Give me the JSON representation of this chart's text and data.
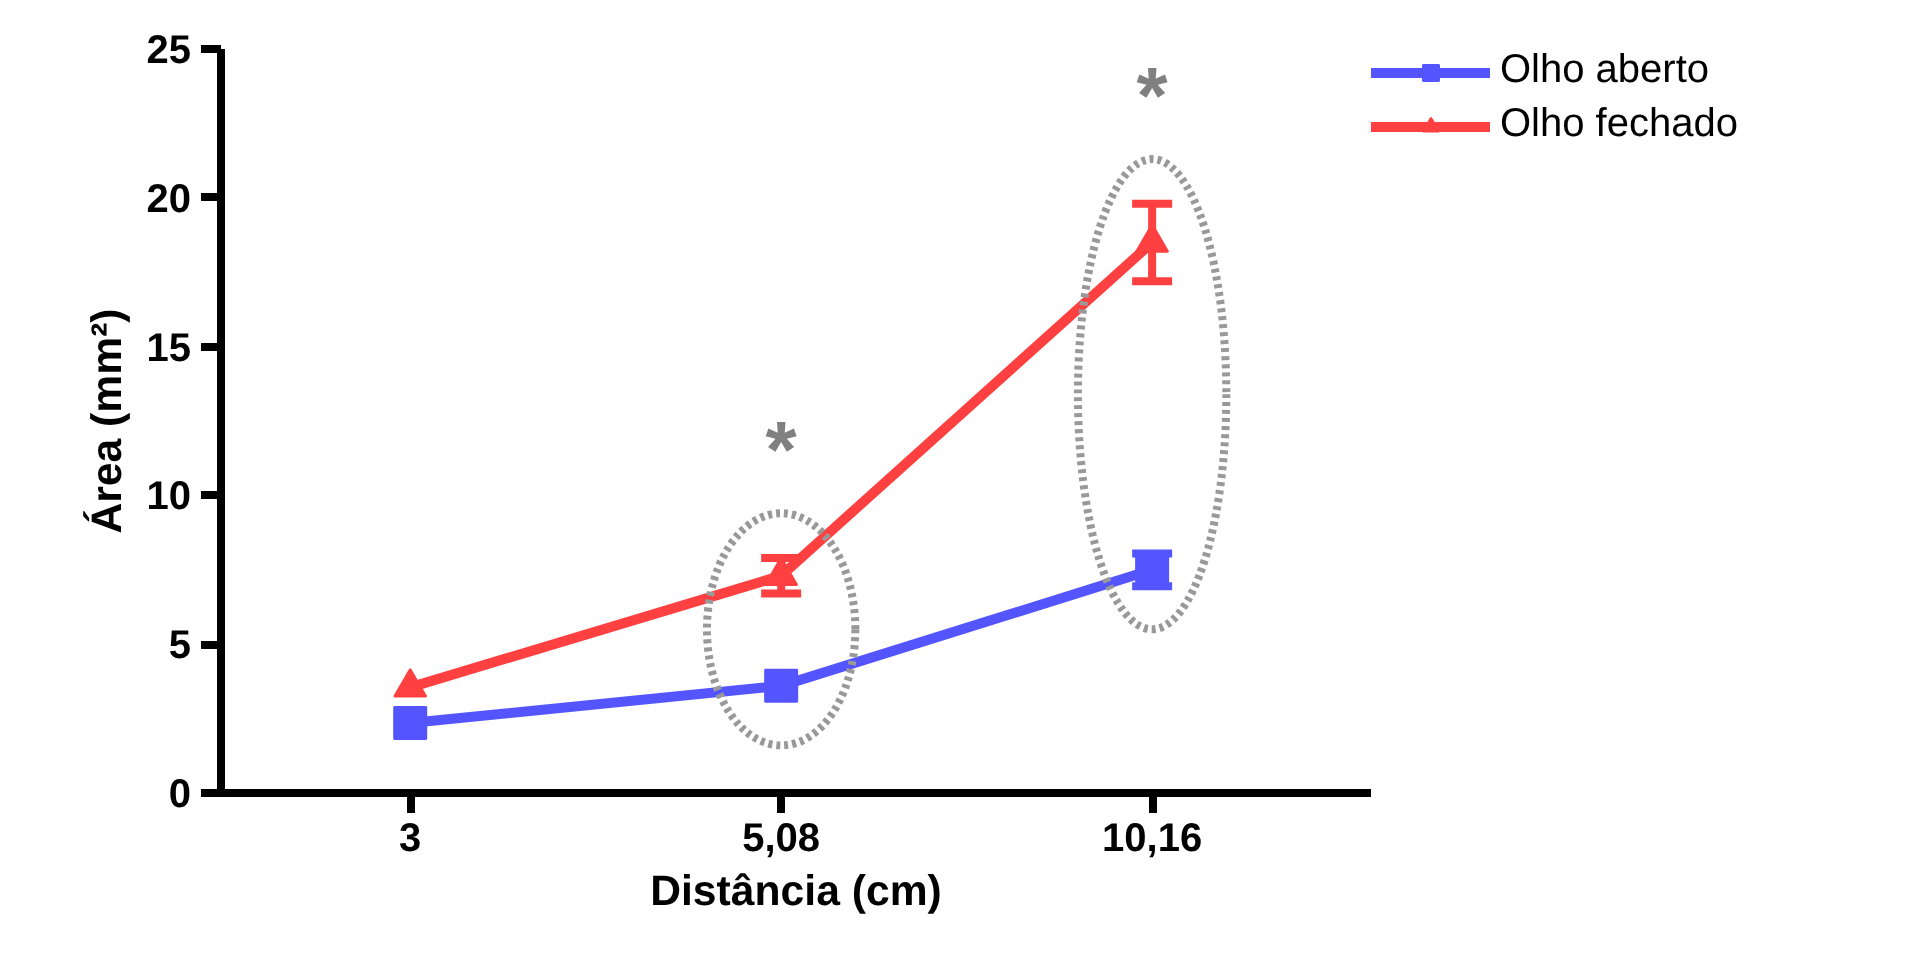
{
  "chart_data": {
    "type": "line",
    "xlabel": "Distância (cm)",
    "ylabel": "Área (mm²)",
    "categories": [
      "3",
      "5,08",
      "10,16"
    ],
    "ylim": [
      0,
      25
    ],
    "yticks": [
      0,
      5,
      10,
      15,
      20,
      25
    ],
    "grid": false,
    "legend": "top right",
    "line_style": "solid",
    "series": [
      {
        "name": "Olho aberto",
        "color": "#5555ff",
        "marker": "square",
        "values": [
          2.35,
          3.6,
          7.5
        ],
        "errors": [
          null,
          null,
          0.55
        ]
      },
      {
        "name": "Olho fechado",
        "color": "#ff4040",
        "marker": "triangle",
        "values": [
          3.55,
          7.3,
          18.5
        ],
        "errors": [
          null,
          0.6,
          1.3
        ]
      }
    ],
    "annotations": [
      "*",
      "*"
    ]
  }
}
